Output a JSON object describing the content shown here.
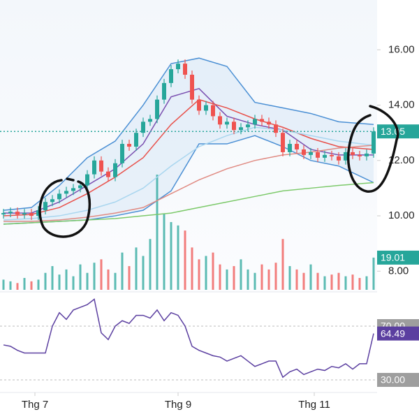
{
  "chart_data": {
    "type": "candlestick",
    "open": [
      10.05,
      10.1,
      10.15,
      10.05,
      10.1,
      10.0,
      10.2,
      10.5,
      10.6,
      10.8,
      10.9,
      11.0,
      11.1,
      11.5,
      12.0,
      11.6,
      11.4,
      11.9,
      12.6,
      12.5,
      13.0,
      13.4,
      13.5,
      14.2,
      14.8,
      15.3,
      15.5,
      15.1,
      14.2,
      13.8,
      14.0,
      13.6,
      13.3,
      13.4,
      13.1,
      13.2,
      13.3,
      13.5,
      13.4,
      13.3,
      13.0,
      12.3,
      12.6,
      12.4,
      12.2,
      12.3,
      12.1,
      12.2,
      12.15,
      12.0,
      12.3,
      12.2,
      12.15,
      12.25
    ],
    "high": [
      10.25,
      10.3,
      10.3,
      10.25,
      10.25,
      10.35,
      10.65,
      10.75,
      10.95,
      11.05,
      11.15,
      11.25,
      11.65,
      12.15,
      12.15,
      11.75,
      12.05,
      12.75,
      12.75,
      13.15,
      13.55,
      13.65,
      14.35,
      14.95,
      15.45,
      15.65,
      15.65,
      15.25,
      14.35,
      14.15,
      14.15,
      13.75,
      13.55,
      13.55,
      13.35,
      13.45,
      13.65,
      13.65,
      13.55,
      13.45,
      13.15,
      12.75,
      12.75,
      12.55,
      12.45,
      12.45,
      12.35,
      12.35,
      12.3,
      12.45,
      12.45,
      12.35,
      12.4,
      13.2
    ],
    "low": [
      9.9,
      9.95,
      9.9,
      9.9,
      9.85,
      9.85,
      10.05,
      10.35,
      10.45,
      10.65,
      10.75,
      10.85,
      10.95,
      11.35,
      11.45,
      11.25,
      11.25,
      11.75,
      12.35,
      12.35,
      12.85,
      13.25,
      13.35,
      14.05,
      14.65,
      15.15,
      14.95,
      14.05,
      13.65,
      13.65,
      13.45,
      13.15,
      13.15,
      12.95,
      12.95,
      13.05,
      13.15,
      13.25,
      13.15,
      12.85,
      12.15,
      12.15,
      12.25,
      12.05,
      12.05,
      11.95,
      11.95,
      12.0,
      11.85,
      11.85,
      12.05,
      12.0,
      12.0,
      12.1
    ],
    "close": [
      10.1,
      10.15,
      10.05,
      10.1,
      10.0,
      10.2,
      10.5,
      10.6,
      10.8,
      10.9,
      11.0,
      11.1,
      11.5,
      12.0,
      11.6,
      11.4,
      11.9,
      12.6,
      12.5,
      13.0,
      13.4,
      13.5,
      14.2,
      14.8,
      15.3,
      15.5,
      15.1,
      14.2,
      13.8,
      14.0,
      13.6,
      13.3,
      13.4,
      13.1,
      13.2,
      13.3,
      13.5,
      13.4,
      13.3,
      13.0,
      12.3,
      12.6,
      12.4,
      12.2,
      12.3,
      12.1,
      12.2,
      12.15,
      12.0,
      12.3,
      12.2,
      12.15,
      12.25,
      13.05
    ],
    "volume": [
      6,
      5,
      4,
      7,
      5,
      6,
      10,
      14,
      9,
      12,
      8,
      15,
      10,
      16,
      18,
      12,
      10,
      22,
      14,
      25,
      20,
      30,
      68,
      45,
      40,
      38,
      35,
      25,
      18,
      20,
      22,
      15,
      12,
      14,
      18,
      12,
      10,
      15,
      12,
      16,
      30,
      14,
      12,
      10,
      15,
      10,
      8,
      9,
      10,
      8,
      9,
      7,
      8,
      19.01
    ],
    "rsi": [
      56,
      55,
      52,
      50,
      50,
      50,
      50,
      70,
      80,
      75,
      82,
      84,
      86,
      90,
      65,
      60,
      70,
      74,
      72,
      78,
      78,
      76,
      82,
      74,
      80,
      78,
      70,
      55,
      52,
      50,
      48,
      47,
      44,
      46,
      48,
      44,
      40,
      42,
      44,
      44,
      32,
      36,
      38,
      34,
      36,
      38,
      37,
      40,
      39,
      42,
      38,
      42,
      42,
      64.49
    ],
    "overlay_x": [
      0,
      4,
      8,
      12,
      16,
      20,
      24,
      28,
      32,
      36,
      40,
      44,
      48,
      53
    ],
    "bands": {
      "color": "#4a8fd4",
      "upper": [
        10.2,
        10.3,
        11.1,
        12.1,
        12.7,
        14.0,
        15.5,
        15.7,
        15.4,
        14.1,
        13.9,
        13.7,
        13.4,
        13.3
      ],
      "lower": [
        9.7,
        9.75,
        9.8,
        9.85,
        10.0,
        10.2,
        10.9,
        12.6,
        12.6,
        12.9,
        12.5,
        12.0,
        11.8,
        11.2
      ]
    },
    "series": [
      {
        "color": "#7a4fb0",
        "values": [
          10.1,
          10.1,
          10.5,
          11.1,
          11.7,
          12.6,
          14.3,
          14.6,
          13.6,
          13.3,
          13.1,
          12.4,
          12.2,
          12.2
        ]
      },
      {
        "color": "#e8504a",
        "values": [
          10.0,
          10.05,
          10.3,
          10.8,
          11.4,
          12.1,
          13.3,
          14.2,
          13.9,
          13.5,
          13.2,
          12.8,
          12.5,
          12.4
        ]
      },
      {
        "color": "#a9d6ef",
        "values": [
          9.85,
          9.9,
          10.0,
          10.2,
          10.5,
          11.0,
          11.8,
          12.5,
          12.9,
          13.2,
          13.1,
          12.9,
          12.7,
          12.55
        ]
      },
      {
        "color": "#e08a82",
        "values": [
          9.8,
          9.8,
          9.85,
          9.95,
          10.1,
          10.3,
          10.8,
          11.3,
          11.7,
          12.0,
          12.2,
          12.3,
          12.45,
          12.55
        ]
      },
      {
        "color": "#7cc96a",
        "values": [
          9.7,
          9.75,
          9.8,
          9.85,
          9.9,
          10.0,
          10.1,
          10.3,
          10.5,
          10.7,
          10.9,
          11.0,
          11.1,
          11.2
        ]
      }
    ],
    "up_color": "#26a69a",
    "down_color": "#ef5350",
    "xlim": [
      -0.5,
      53.5
    ],
    "xticks": [
      {
        "value": 4.5,
        "label": "Thg 7"
      },
      {
        "value": 25,
        "label": "Thg 9"
      },
      {
        "value": 44.5,
        "label": "Thg 11"
      }
    ],
    "ylim": [
      7.2,
      17.8
    ],
    "yticks": [
      {
        "value": 8,
        "label": "8.00"
      },
      {
        "value": 10,
        "label": "10.00"
      },
      {
        "value": 12,
        "label": "12.00"
      },
      {
        "value": 14,
        "label": "14.00"
      },
      {
        "value": 16,
        "label": "16.00"
      }
    ],
    "last_price": 13.05,
    "volume_lim": [
      0,
      80
    ],
    "last_volume": 19.01,
    "rsi_lim": [
      21.7,
      94.4
    ],
    "rsi_ticks": [
      {
        "value": 70,
        "label": "70.00"
      },
      {
        "value": 30,
        "label": "30.00"
      }
    ],
    "last_rsi": 64.49,
    "rsi_color": "#5b3fa0"
  }
}
